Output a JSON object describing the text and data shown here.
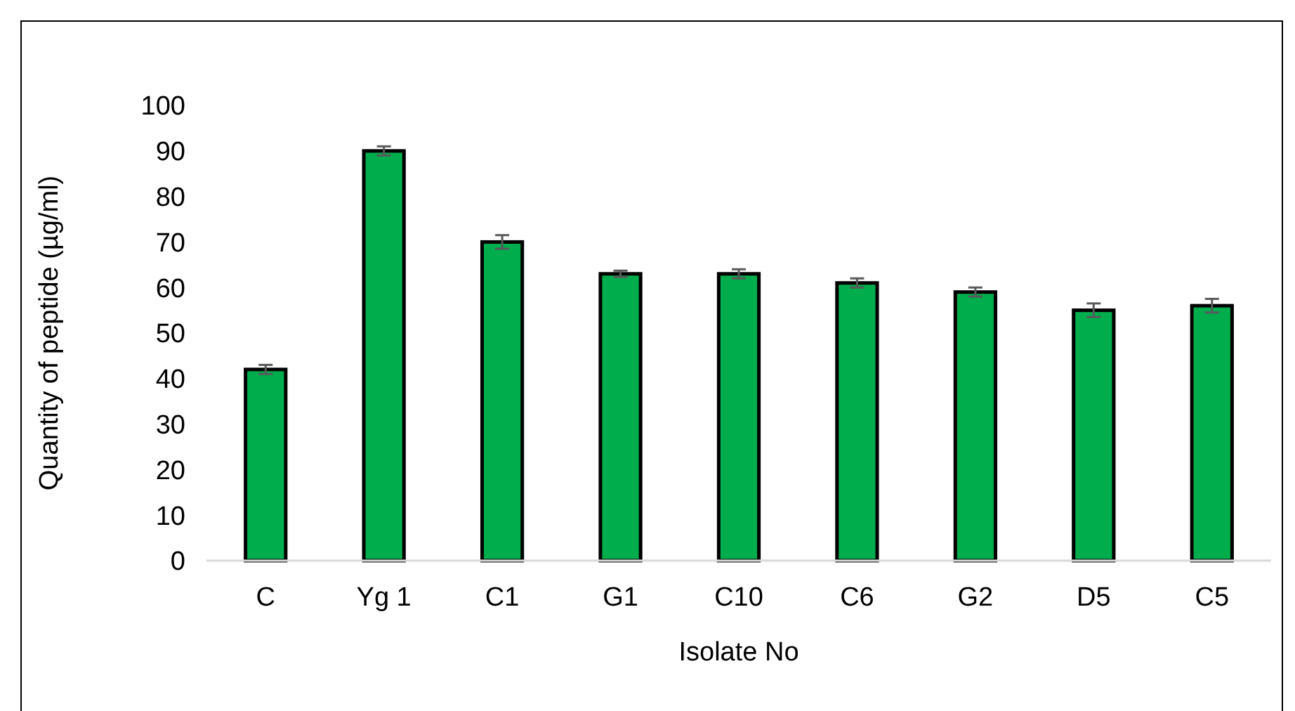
{
  "chart_data": {
    "type": "bar",
    "xlabel": "Isolate No",
    "ylabel": "Quantity of peptide (µg/ml)",
    "categories": [
      "C",
      "Yg 1",
      "C1",
      "G1",
      "C10",
      "C6",
      "G2",
      "D5",
      "C5"
    ],
    "values": [
      42,
      90,
      70,
      63,
      63,
      61,
      59,
      55,
      56
    ],
    "errors": [
      1,
      1,
      1.5,
      0.7,
      1,
      1,
      1,
      1.5,
      1.5
    ],
    "color": "#00ad4d",
    "ylim": [
      0,
      100
    ],
    "yticks": [
      0,
      10,
      20,
      30,
      40,
      50,
      60,
      70,
      80,
      90,
      100
    ],
    "grid": false
  }
}
